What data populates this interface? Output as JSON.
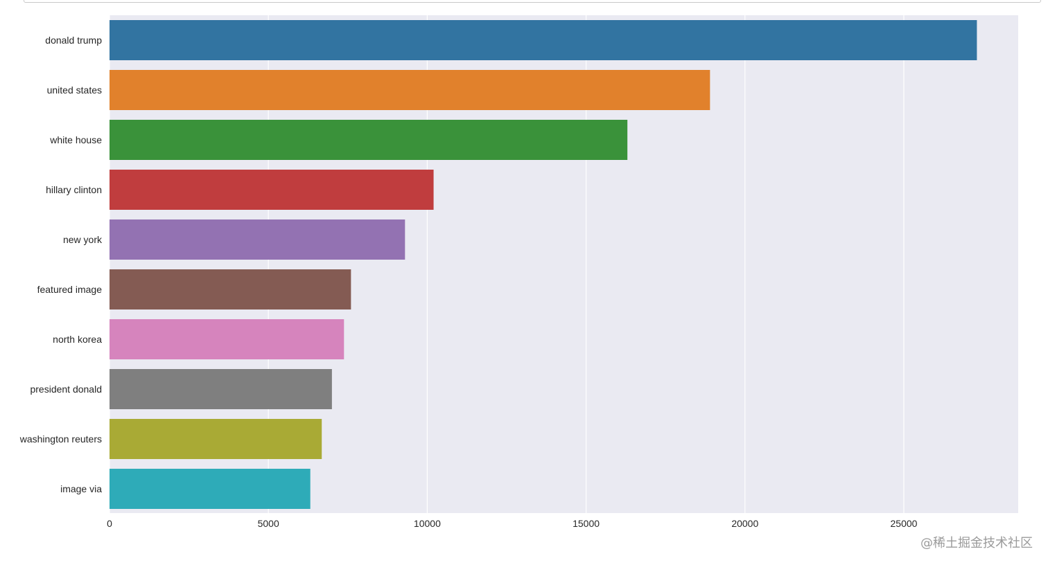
{
  "chart_data": {
    "type": "bar",
    "orientation": "horizontal",
    "style": "seaborn-darkgrid",
    "categories": [
      "donald trump",
      "united states",
      "white house",
      "hillary clinton",
      "new york",
      "featured image",
      "north korea",
      "president donald",
      "washington reuters",
      "image via"
    ],
    "values": [
      27300,
      18900,
      16300,
      10200,
      9300,
      7600,
      7380,
      7000,
      6680,
      6320
    ],
    "colors": [
      "#3274a1",
      "#e1812c",
      "#3a923a",
      "#c03d3e",
      "#9372b2",
      "#845b53",
      "#d684bd",
      "#7f7f7f",
      "#a9aa35",
      "#2eabb8"
    ],
    "x_ticks": [
      "0",
      "5000",
      "10000",
      "15000",
      "20000",
      "25000"
    ],
    "xlim": [
      0,
      28600
    ],
    "grid": true,
    "background_color": "#eaeaf2",
    "title": "",
    "xlabel": "",
    "ylabel": ""
  },
  "watermark": "@稀土掘金技术社区"
}
